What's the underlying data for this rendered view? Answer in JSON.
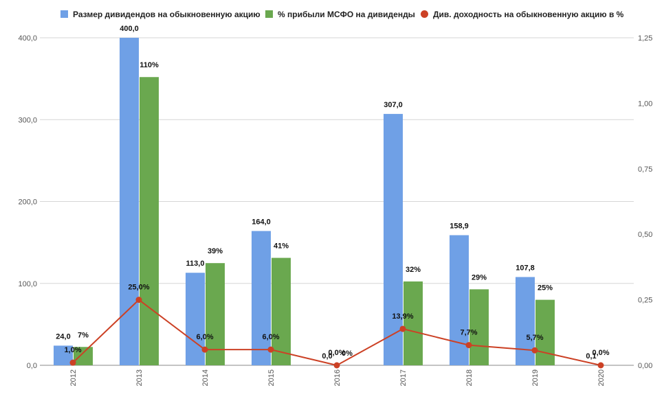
{
  "chart_data": {
    "type": "bar",
    "categories": [
      "2012",
      "2013",
      "2014",
      "2015",
      "2016",
      "2017",
      "2018",
      "2019",
      "2020"
    ],
    "series": [
      {
        "name": "Размер дивидендов на обыкновенную акцию",
        "kind": "bar",
        "axis": "left",
        "color": "#6fa0e6",
        "values": [
          24.0,
          400.0,
          113.0,
          164.0,
          0,
          307.0,
          158.9,
          107.8,
          0.1
        ],
        "labels": [
          "24,0",
          "400,0",
          "113,0",
          "164,0",
          "0,0",
          "307,0",
          "158,9",
          "107,8",
          "0,1"
        ]
      },
      {
        "name": "% прибыли МСФО на дивиденды",
        "kind": "bar",
        "axis": "right",
        "color": "#6aa84f",
        "values": [
          0.07,
          1.1,
          0.39,
          0.41,
          0,
          0.32,
          0.29,
          0.25,
          0
        ],
        "labels": [
          "7%",
          "110%",
          "39%",
          "41%",
          "0%",
          "32%",
          "29%",
          "25%",
          ""
        ]
      },
      {
        "name": "Див. доходность на обыкновенную акцию в %",
        "kind": "line",
        "axis": "right",
        "color": "#cc4125",
        "values": [
          0.01,
          0.25,
          0.06,
          0.06,
          0.0,
          0.139,
          0.077,
          0.057,
          0.0
        ],
        "labels": [
          "1,0%",
          "25,0%",
          "6,0%",
          "6,0%",
          "0,0%",
          "13,9%",
          "7,7%",
          "5,7%",
          "0,0%"
        ]
      }
    ],
    "y_left": {
      "ylim": [
        0,
        400
      ],
      "ticks": [
        "0,0",
        "100,0",
        "200,0",
        "300,0",
        "400,0"
      ]
    },
    "y_right": {
      "ylim": [
        0,
        1.25
      ],
      "ticks": [
        "0,00",
        "0,25",
        "0,50",
        "0,75",
        "1,00",
        "1,25"
      ]
    },
    "grid": true,
    "legend_position": "top"
  }
}
